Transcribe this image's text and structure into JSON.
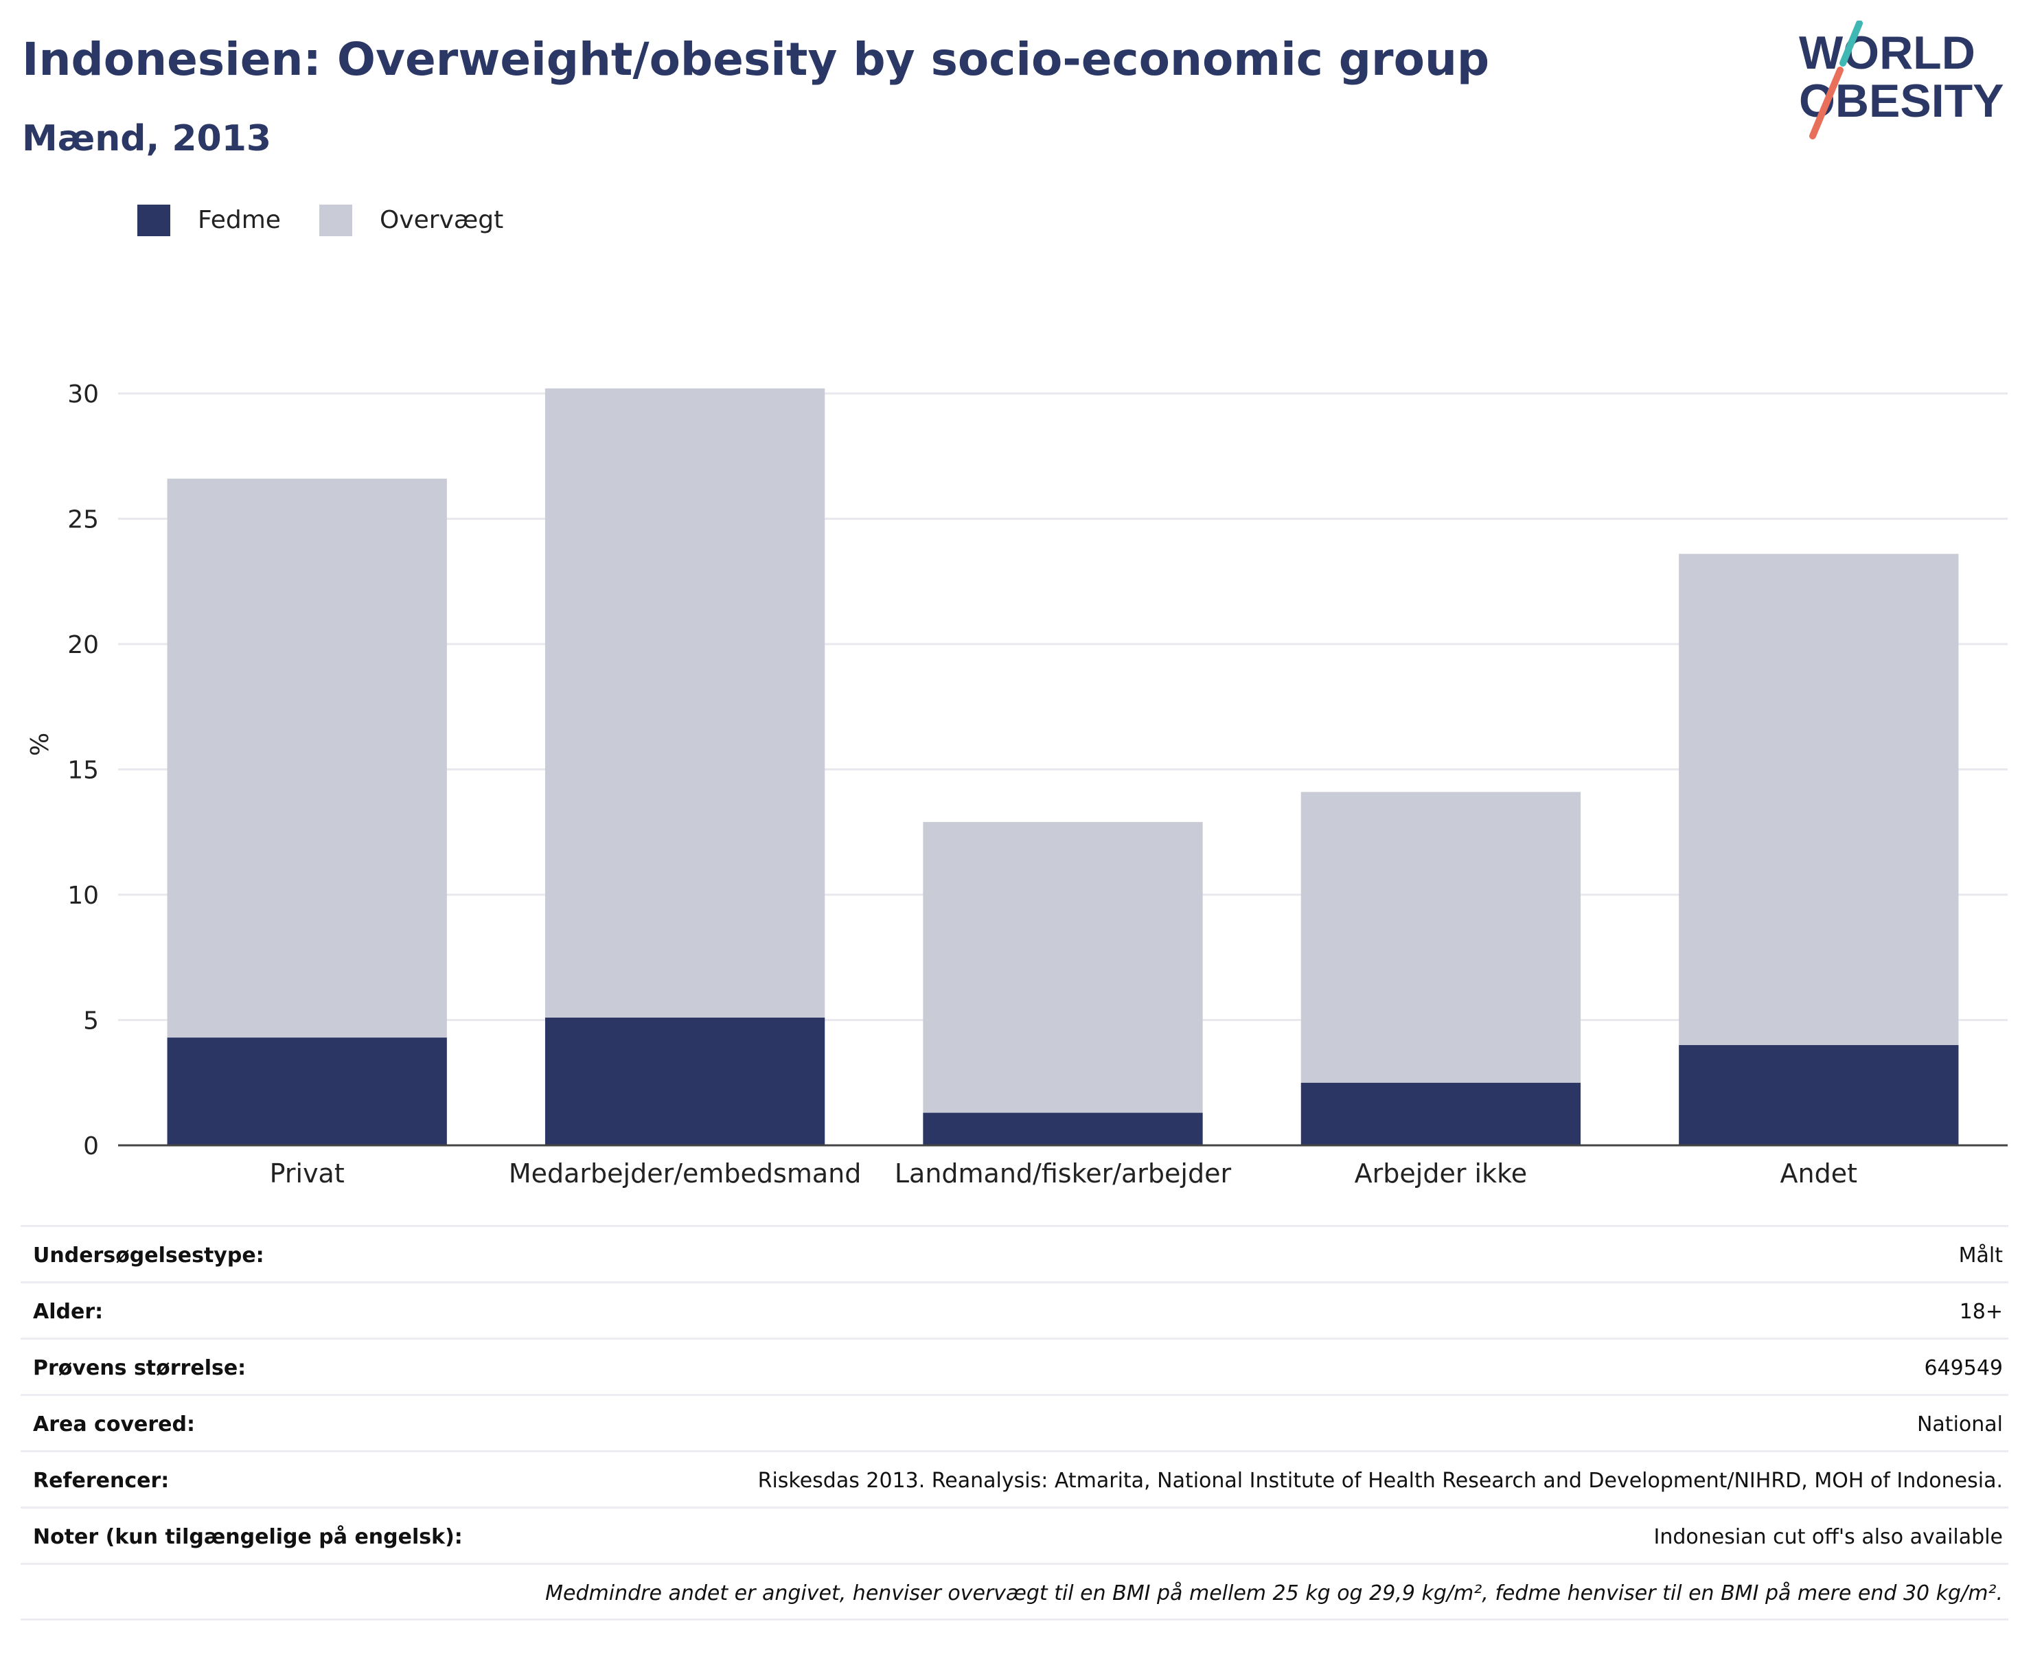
{
  "header": {
    "title": "Indonesien: Overweight/obesity by socio-economic group",
    "subtitle": "Mænd, 2013"
  },
  "logo": {
    "line1": "WORLD",
    "line2": "OBESITY",
    "colors": {
      "text": "#2b3764",
      "slash_top": "#3fb8b3",
      "slash_bottom": "#e8705b"
    }
  },
  "legend": [
    {
      "label": "Fedme",
      "color": "#2b3664"
    },
    {
      "label": "Overvægt",
      "color": "#c9cbd6"
    }
  ],
  "chart_data": {
    "type": "bar",
    "stacked": true,
    "categories": [
      "Privat",
      "Medarbejder/embedsmand",
      "Landmand/fisker/arbejder",
      "Arbejder ikke",
      "Andet"
    ],
    "series": [
      {
        "name": "Fedme",
        "values": [
          4.3,
          5.1,
          1.3,
          2.5,
          4.0
        ],
        "color": "#2b3664"
      },
      {
        "name": "Overvægt",
        "values": [
          22.3,
          25.1,
          11.6,
          11.6,
          19.6
        ],
        "color": "#c9cbd6"
      }
    ],
    "ylabel": "%",
    "yticks": [
      0,
      5,
      10,
      15,
      20,
      25,
      30
    ],
    "ylim": [
      0,
      32
    ],
    "grid": true,
    "legend_position": "top-left"
  },
  "info": [
    {
      "key": "Undersøgelsestype:",
      "value": "Målt"
    },
    {
      "key": "Alder:",
      "value": "18+"
    },
    {
      "key": "Prøvens størrelse:",
      "value": "649549"
    },
    {
      "key": "Area covered:",
      "value": "National"
    },
    {
      "key": "Referencer:",
      "value": "Riskesdas 2013. Reanalysis: Atmarita, National Institute of Health Research and Development/NIHRD, MOH of Indonesia."
    },
    {
      "key": "Noter (kun tilgængelige på engelsk):",
      "value": "Indonesian cut off's also available"
    }
  ],
  "footnote": "Medmindre andet er angivet, henviser overvægt til en BMI på mellem 25 kg og 29,9 kg/m², fedme henviser til en BMI på mere end 30 kg/m²."
}
